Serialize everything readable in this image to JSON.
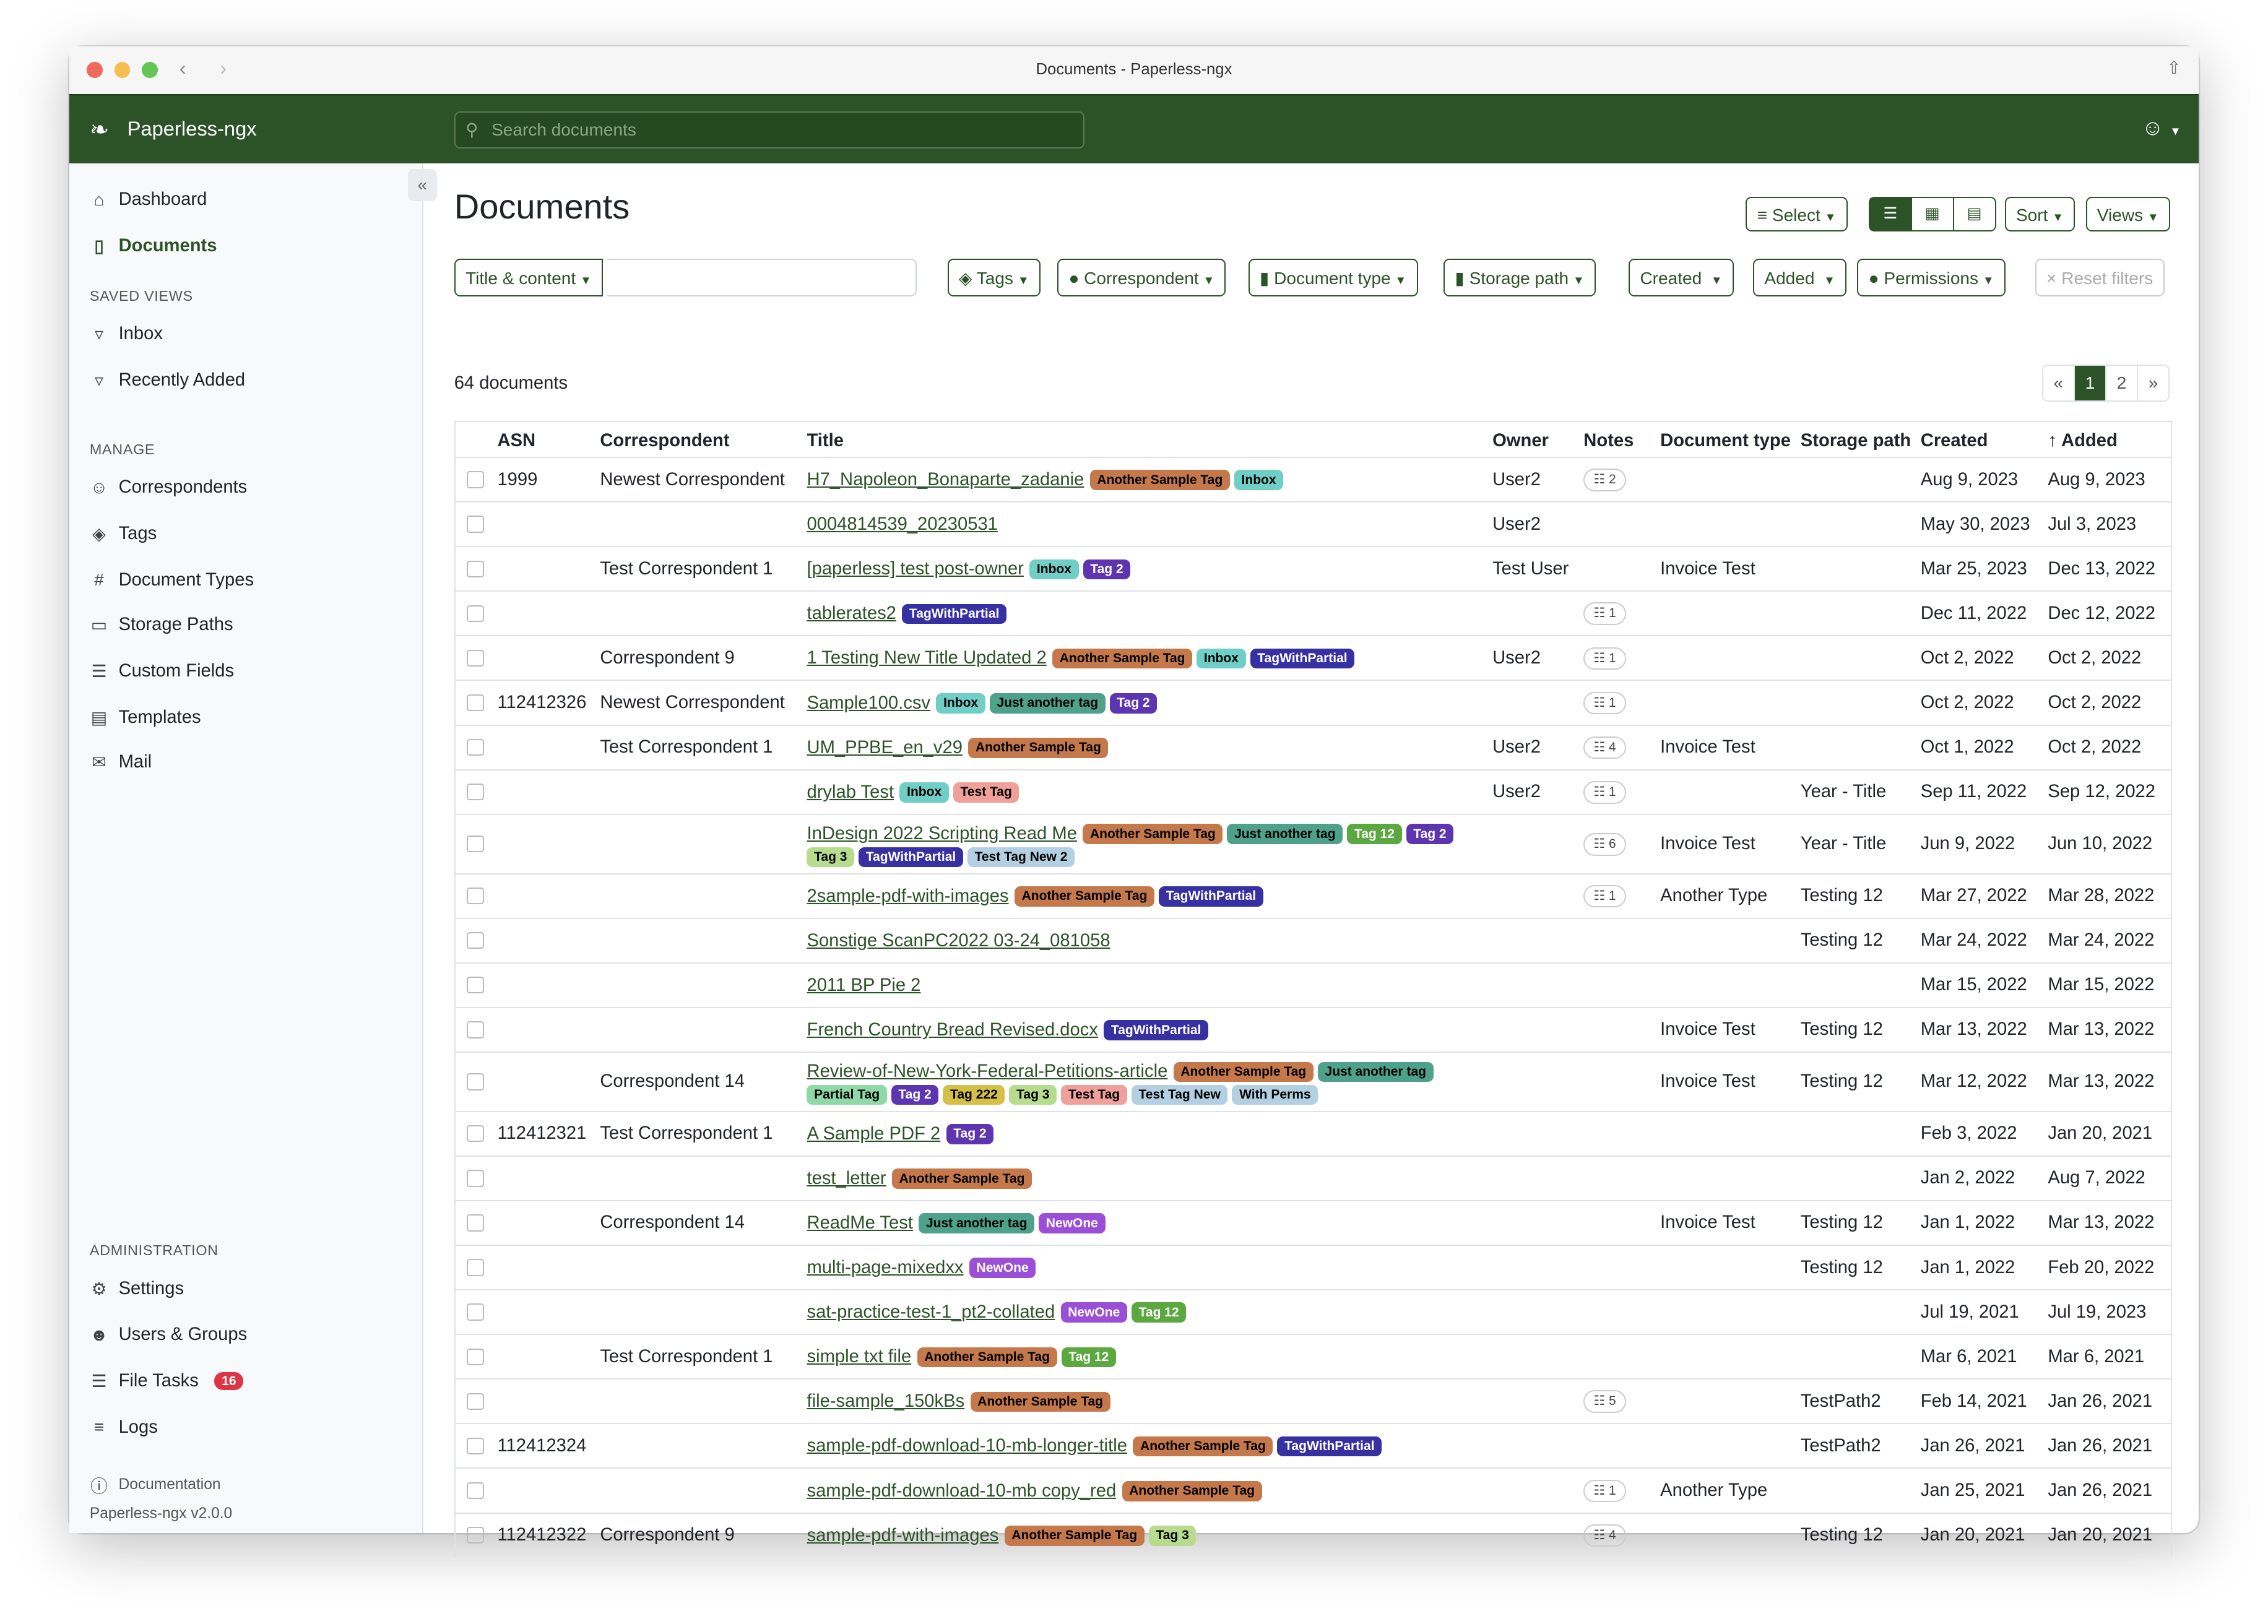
{
  "window": {
    "title": "Documents - Paperless-ngx"
  },
  "header": {
    "brand": "Paperless-ngx",
    "search_placeholder": "Search documents"
  },
  "sidebar": {
    "items": [
      {
        "label": "Dashboard",
        "icon": "house-icon"
      },
      {
        "label": "Documents",
        "icon": "file-icon",
        "active": true
      }
    ],
    "saved_views_heading": "SAVED VIEWS",
    "saved_views": [
      {
        "label": "Inbox"
      },
      {
        "label": "Recently Added"
      }
    ],
    "manage_heading": "MANAGE",
    "manage": [
      {
        "label": "Correspondents"
      },
      {
        "label": "Tags"
      },
      {
        "label": "Document Types"
      },
      {
        "label": "Storage Paths"
      },
      {
        "label": "Custom Fields"
      },
      {
        "label": "Templates"
      },
      {
        "label": "Mail"
      }
    ],
    "admin_heading": "ADMINISTRATION",
    "admin": [
      {
        "label": "Settings"
      },
      {
        "label": "Users & Groups"
      },
      {
        "label": "File Tasks",
        "badge": "16"
      },
      {
        "label": "Logs"
      }
    ],
    "documentation": "Documentation",
    "version": "Paperless-ngx v2.0.0"
  },
  "main": {
    "title": "Documents",
    "select_label": "Select",
    "sort_label": "Sort",
    "views_label": "Views",
    "filters": {
      "title_content": "Title & content",
      "tags": "Tags",
      "correspondent": "Correspondent",
      "document_type": "Document type",
      "storage_path": "Storage path",
      "created": "Created",
      "added": "Added",
      "permissions": "Permissions",
      "reset": "Reset filters"
    },
    "count": "64 documents",
    "pager": {
      "prev": "«",
      "pages": [
        "1",
        "2"
      ],
      "current": "1",
      "next": "»"
    }
  },
  "table": {
    "columns": {
      "asn": "ASN",
      "correspondent": "Correspondent",
      "title": "Title",
      "owner": "Owner",
      "notes": "Notes",
      "document_type": "Document type",
      "storage_path": "Storage path",
      "created": "Created",
      "added": "Added"
    },
    "sort_column": "added",
    "rows": [
      {
        "asn": "1999",
        "correspondent": "Newest Correspondent",
        "title": "H7_Napoleon_Bonaparte_zadanie",
        "tags": [
          "Another Sample Tag",
          "Inbox"
        ],
        "owner": "User2",
        "notes": "2",
        "type": "",
        "path": "",
        "created": "Aug 9, 2023",
        "added": "Aug 9, 2023"
      },
      {
        "asn": "",
        "correspondent": "",
        "title": "0004814539_20230531",
        "tags": [],
        "owner": "User2",
        "notes": "",
        "type": "",
        "path": "",
        "created": "May 30, 2023",
        "added": "Jul 3, 2023"
      },
      {
        "asn": "",
        "correspondent": "Test Correspondent 1",
        "title": "[paperless] test post-owner",
        "tags": [
          "Inbox",
          "Tag 2"
        ],
        "owner": "Test User",
        "notes": "",
        "type": "Invoice Test",
        "path": "",
        "created": "Mar 25, 2023",
        "added": "Dec 13, 2022"
      },
      {
        "asn": "",
        "correspondent": "",
        "title": "tablerates2",
        "tags": [
          "TagWithPartial"
        ],
        "owner": "",
        "notes": "1",
        "type": "",
        "path": "",
        "created": "Dec 11, 2022",
        "added": "Dec 12, 2022"
      },
      {
        "asn": "",
        "correspondent": "Correspondent 9",
        "title": "1 Testing New Title Updated 2",
        "tags": [
          "Another Sample Tag",
          "Inbox",
          "TagWithPartial"
        ],
        "owner": "User2",
        "notes": "1",
        "type": "",
        "path": "",
        "created": "Oct 2, 2022",
        "added": "Oct 2, 2022"
      },
      {
        "asn": "112412326",
        "correspondent": "Newest Correspondent",
        "title": "Sample100.csv",
        "tags": [
          "Inbox",
          "Just another tag",
          "Tag 2"
        ],
        "owner": "",
        "notes": "1",
        "type": "",
        "path": "",
        "created": "Oct 2, 2022",
        "added": "Oct 2, 2022"
      },
      {
        "asn": "",
        "correspondent": "Test Correspondent 1",
        "title": "UM_PPBE_en_v29",
        "tags": [
          "Another Sample Tag"
        ],
        "owner": "User2",
        "notes": "4",
        "type": "Invoice Test",
        "path": "",
        "created": "Oct 1, 2022",
        "added": "Oct 2, 2022"
      },
      {
        "asn": "",
        "correspondent": "",
        "title": "drylab Test",
        "tags": [
          "Inbox",
          "Test Tag"
        ],
        "owner": "User2",
        "notes": "1",
        "type": "",
        "path": "Year - Title",
        "created": "Sep 11, 2022",
        "added": "Sep 12, 2022"
      },
      {
        "asn": "",
        "correspondent": "",
        "title": "InDesign 2022 Scripting Read Me",
        "tags": [
          "Another Sample Tag",
          "Just another tag",
          "Tag 12",
          "Tag 2",
          "Tag 3",
          "TagWithPartial",
          "Test Tag New 2"
        ],
        "owner": "",
        "notes": "6",
        "type": "Invoice Test",
        "path": "Year - Title",
        "created": "Jun 9, 2022",
        "added": "Jun 10, 2022"
      },
      {
        "asn": "",
        "correspondent": "",
        "title": "2sample-pdf-with-images",
        "tags": [
          "Another Sample Tag",
          "TagWithPartial"
        ],
        "owner": "",
        "notes": "1",
        "type": "Another Type",
        "path": "Testing 12",
        "created": "Mar 27, 2022",
        "added": "Mar 28, 2022"
      },
      {
        "asn": "",
        "correspondent": "",
        "title": "Sonstige ScanPC2022 03-24_081058",
        "tags": [],
        "owner": "",
        "notes": "",
        "type": "",
        "path": "Testing 12",
        "created": "Mar 24, 2022",
        "added": "Mar 24, 2022"
      },
      {
        "asn": "",
        "correspondent": "",
        "title": "2011 BP Pie 2",
        "tags": [],
        "owner": "",
        "notes": "",
        "type": "",
        "path": "",
        "created": "Mar 15, 2022",
        "added": "Mar 15, 2022"
      },
      {
        "asn": "",
        "correspondent": "",
        "title": "French Country Bread Revised.docx",
        "tags": [
          "TagWithPartial"
        ],
        "owner": "",
        "notes": "",
        "type": "Invoice Test",
        "path": "Testing 12",
        "created": "Mar 13, 2022",
        "added": "Mar 13, 2022"
      },
      {
        "asn": "",
        "correspondent": "Correspondent 14",
        "title": "Review-of-New-York-Federal-Petitions-article",
        "tags": [
          "Another Sample Tag",
          "Just another tag",
          "Partial Tag",
          "Tag 2",
          "Tag 222",
          "Tag 3",
          "Test Tag",
          "Test Tag New",
          "With Perms"
        ],
        "owner": "",
        "notes": "",
        "type": "Invoice Test",
        "path": "Testing 12",
        "created": "Mar 12, 2022",
        "added": "Mar 13, 2022"
      },
      {
        "asn": "112412321",
        "correspondent": "Test Correspondent 1",
        "title": "A Sample PDF 2",
        "tags": [
          "Tag 2"
        ],
        "owner": "",
        "notes": "",
        "type": "",
        "path": "",
        "created": "Feb 3, 2022",
        "added": "Jan 20, 2021"
      },
      {
        "asn": "",
        "correspondent": "",
        "title": "test_letter",
        "tags": [
          "Another Sample Tag"
        ],
        "owner": "",
        "notes": "",
        "type": "",
        "path": "",
        "created": "Jan 2, 2022",
        "added": "Aug 7, 2022"
      },
      {
        "asn": "",
        "correspondent": "Correspondent 14",
        "title": "ReadMe Test",
        "tags": [
          "Just another tag",
          "NewOne"
        ],
        "owner": "",
        "notes": "",
        "type": "Invoice Test",
        "path": "Testing 12",
        "created": "Jan 1, 2022",
        "added": "Mar 13, 2022"
      },
      {
        "asn": "",
        "correspondent": "",
        "title": "multi-page-mixedxx",
        "tags": [
          "NewOne"
        ],
        "owner": "",
        "notes": "",
        "type": "",
        "path": "Testing 12",
        "created": "Jan 1, 2022",
        "added": "Feb 20, 2022"
      },
      {
        "asn": "",
        "correspondent": "",
        "title": "sat-practice-test-1_pt2-collated",
        "tags": [
          "NewOne",
          "Tag 12"
        ],
        "owner": "",
        "notes": "",
        "type": "",
        "path": "",
        "created": "Jul 19, 2021",
        "added": "Jul 19, 2023"
      },
      {
        "asn": "",
        "correspondent": "Test Correspondent 1",
        "title": "simple txt file",
        "tags": [
          "Another Sample Tag",
          "Tag 12"
        ],
        "owner": "",
        "notes": "",
        "type": "",
        "path": "",
        "created": "Mar 6, 2021",
        "added": "Mar 6, 2021"
      },
      {
        "asn": "",
        "correspondent": "",
        "title": "file-sample_150kBs",
        "tags": [
          "Another Sample Tag"
        ],
        "owner": "",
        "notes": "5",
        "type": "",
        "path": "TestPath2",
        "created": "Feb 14, 2021",
        "added": "Jan 26, 2021"
      },
      {
        "asn": "112412324",
        "correspondent": "",
        "title": "sample-pdf-download-10-mb-longer-title",
        "tags": [
          "Another Sample Tag",
          "TagWithPartial"
        ],
        "owner": "",
        "notes": "",
        "type": "",
        "path": "TestPath2",
        "created": "Jan 26, 2021",
        "added": "Jan 26, 2021"
      },
      {
        "asn": "",
        "correspondent": "",
        "title": "sample-pdf-download-10-mb copy_red",
        "tags": [
          "Another Sample Tag"
        ],
        "owner": "",
        "notes": "1",
        "type": "Another Type",
        "path": "",
        "created": "Jan 25, 2021",
        "added": "Jan 26, 2021"
      },
      {
        "asn": "112412322",
        "correspondent": "Correspondent 9",
        "title": "sample-pdf-with-images",
        "tags": [
          "Another Sample Tag",
          "Tag 3"
        ],
        "owner": "",
        "notes": "4",
        "type": "",
        "path": "Testing 12",
        "created": "Jan 20, 2021",
        "added": "Jan 20, 2021"
      }
    ]
  },
  "tag_colors": {
    "Another Sample Tag": {
      "bg": "#c5794b",
      "fg": "#000000"
    },
    "Inbox": {
      "bg": "#6fcfc6",
      "fg": "#000000"
    },
    "Tag 2": {
      "bg": "#5e35b1",
      "fg": "#ffffff"
    },
    "TagWithPartial": {
      "bg": "#3730a3",
      "fg": "#ffffff"
    },
    "Just another tag": {
      "bg": "#4ea18a",
      "fg": "#000000"
    },
    "Test Tag": {
      "bg": "#f0a09a",
      "fg": "#000000"
    },
    "Tag 12": {
      "bg": "#5aa83f",
      "fg": "#ffffff"
    },
    "Tag 3": {
      "bg": "#b7dc8e",
      "fg": "#000000"
    },
    "Test Tag New 2": {
      "bg": "#b3d0e3",
      "fg": "#000000"
    },
    "Partial Tag": {
      "bg": "#8fd9a8",
      "fg": "#000000"
    },
    "Tag 222": {
      "bg": "#d4c048",
      "fg": "#000000"
    },
    "Test Tag New": {
      "bg": "#b3d0e3",
      "fg": "#000000"
    },
    "With Perms": {
      "bg": "#b3d0e3",
      "fg": "#000000"
    },
    "NewOne": {
      "bg": "#9b4fd6",
      "fg": "#ffffff"
    }
  },
  "colors": {
    "primary": "#2c5328"
  }
}
